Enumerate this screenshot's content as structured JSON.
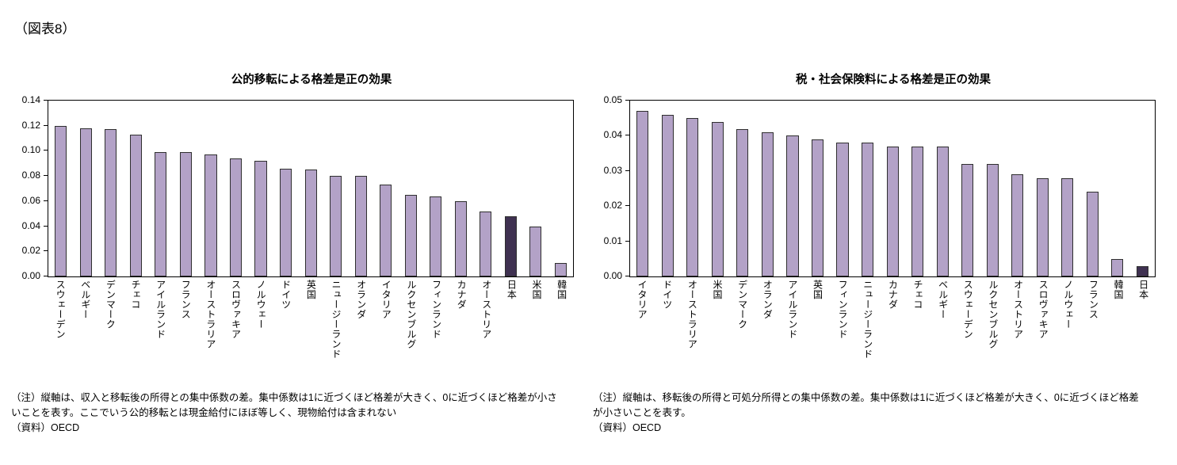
{
  "page": {
    "figure_label": "（図表8）"
  },
  "chart_data": [
    {
      "type": "bar",
      "title": "公的移転による格差是正の効果",
      "xlabel": "",
      "ylabel": "",
      "ylim": [
        0,
        0.14
      ],
      "ytick_step": 0.02,
      "ytick_decimals": 2,
      "grid": false,
      "legend": "none",
      "bar_color": "#b3a2c7",
      "highlight_color": "#3f3151",
      "highlight_category": "日本",
      "categories": [
        "スウェーデン",
        "ベルギー",
        "デンマーク",
        "チェコ",
        "アイルランド",
        "フランス",
        "オーストラリア",
        "スロヴァキア",
        "ノルウェー",
        "ドイツ",
        "英国",
        "ニュージーランド",
        "オランダ",
        "イタリア",
        "ルクセンブルグ",
        "フィンランド",
        "カナダ",
        "オーストリア",
        "日本",
        "米国",
        "韓国"
      ],
      "values": [
        0.12,
        0.118,
        0.117,
        0.113,
        0.099,
        0.099,
        0.097,
        0.094,
        0.092,
        0.086,
        0.085,
        0.08,
        0.08,
        0.073,
        0.065,
        0.064,
        0.06,
        0.052,
        0.048,
        0.04,
        0.011
      ],
      "note": "（注）縦軸は、収入と移転後の所得との集中係数の差。集中係数は1に近づくほど格差が大きく、0に近づくほど格差が小さいことを表す。ここでいう公的移転とは現金給付にほぼ等しく、現物給付は含まれない",
      "source": "（資料）OECD"
    },
    {
      "type": "bar",
      "title": "税・社会保険料による格差是正の効果",
      "xlabel": "",
      "ylabel": "",
      "ylim": [
        0,
        0.05
      ],
      "ytick_step": 0.01,
      "ytick_decimals": 2,
      "grid": false,
      "legend": "none",
      "bar_color": "#b3a2c7",
      "highlight_color": "#3f3151",
      "highlight_category": "日本",
      "categories": [
        "イタリア",
        "ドイツ",
        "オーストラリア",
        "米国",
        "デンマーク",
        "オランダ",
        "アイルランド",
        "英国",
        "フィンランド",
        "ニュージーランド",
        "カナダ",
        "チェコ",
        "ベルギー",
        "スウェーデン",
        "ルクセンブルグ",
        "オーストリア",
        "スロヴァキア",
        "ノルウェー",
        "フランス",
        "韓国",
        "日本"
      ],
      "values": [
        0.047,
        0.046,
        0.045,
        0.044,
        0.042,
        0.041,
        0.04,
        0.039,
        0.038,
        0.038,
        0.037,
        0.037,
        0.037,
        0.032,
        0.032,
        0.029,
        0.028,
        0.028,
        0.024,
        0.005,
        0.003
      ],
      "note": "（注）縦軸は、移転後の所得と可処分所得との集中係数の差。集中係数は1に近づくほど格差が大きく、0に近づくほど格差が小さいことを表す。",
      "source": "（資料）OECD"
    }
  ]
}
